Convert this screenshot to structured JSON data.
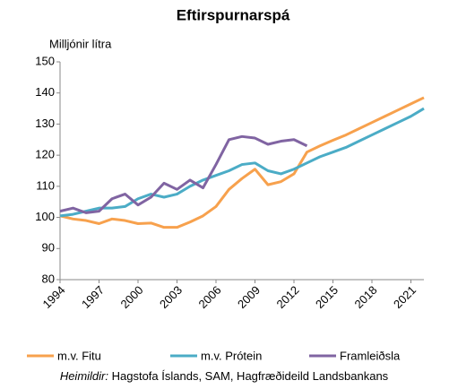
{
  "chart_data": {
    "type": "line",
    "title": "Eftirspurnarspá",
    "y_label": "Milljónir lítra",
    "x": [
      1994,
      1995,
      1996,
      1997,
      1998,
      1999,
      2000,
      2001,
      2002,
      2003,
      2004,
      2005,
      2006,
      2007,
      2008,
      2009,
      2010,
      2011,
      2012,
      2013,
      2014,
      2015,
      2016,
      2017,
      2018,
      2019,
      2020,
      2021,
      2022
    ],
    "xlim": [
      1994,
      2022
    ],
    "xticks": [
      1994,
      1997,
      2000,
      2003,
      2006,
      2009,
      2012,
      2015,
      2018,
      2021
    ],
    "ylim": [
      80,
      150
    ],
    "yticks": [
      80,
      90,
      100,
      110,
      120,
      130,
      140,
      150
    ],
    "series": [
      {
        "name": "m.v. Fitu",
        "color": "#f7a14d",
        "values": [
          100.5,
          99.5,
          99,
          98,
          99.5,
          99,
          98,
          98.2,
          96.8,
          96.8,
          98.5,
          100.5,
          103.5,
          109,
          112.5,
          115.5,
          110.5,
          111.5,
          114,
          121,
          123,
          124.8,
          126.5,
          128.5,
          130.5,
          132.5,
          134.5,
          136.5,
          138.5
        ]
      },
      {
        "name": "m.v. Prótein",
        "color": "#4bacc6",
        "values": [
          100.5,
          101,
          102,
          103,
          103,
          103.5,
          106,
          107.5,
          106.5,
          107.5,
          110,
          112,
          113.5,
          115,
          117,
          117.5,
          115,
          114,
          115.5,
          117.5,
          119.5,
          121,
          122.5,
          124.5,
          126.5,
          128.5,
          130.5,
          132.5,
          135
        ]
      },
      {
        "name": "Framleiðsla",
        "color": "#8064a2",
        "values": [
          102,
          103,
          101.5,
          102,
          106,
          107.5,
          104,
          106.5,
          111,
          109,
          112,
          109.5,
          117,
          125,
          126,
          125.5,
          123.5,
          124.5,
          125,
          123,
          null,
          null,
          null,
          null,
          null,
          null,
          null,
          null,
          null
        ]
      }
    ],
    "source_label": "Heimildir:",
    "source": "Hagstofa Íslands, SAM, Hagfræðideild Landsbankans"
  }
}
